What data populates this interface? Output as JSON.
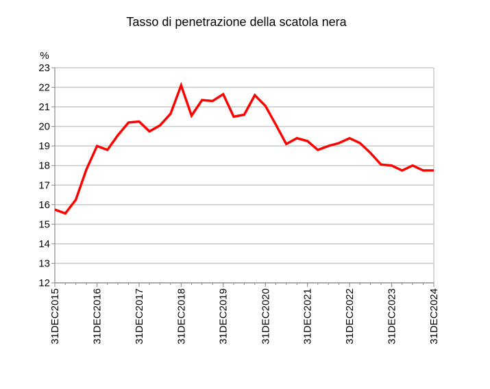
{
  "chart_data": {
    "type": "line",
    "title": "Tasso di penetrazione della scatola nera",
    "ylabel": "%",
    "xlabel": "",
    "ylim": [
      12,
      23
    ],
    "y_ticks": [
      "12",
      "13",
      "14",
      "15",
      "16",
      "17",
      "18",
      "19",
      "20",
      "21",
      "22",
      "23"
    ],
    "x_ticks": [
      "31DEC2015",
      "31DEC2016",
      "31DEC2017",
      "31DEC2018",
      "31DEC2019",
      "31DEC2020",
      "31DEC2021",
      "31DEC2022",
      "31DEC2023",
      "31DEC2024"
    ],
    "grid": true,
    "legend": "none",
    "line_color": "#ff0000",
    "grid_color": "#c8c8c8",
    "series": [
      {
        "x": [
          "2015-12-31",
          "2016-03-31",
          "2016-06-30",
          "2016-09-30",
          "2016-12-31",
          "2017-03-31",
          "2017-06-30",
          "2017-09-30",
          "2017-12-31",
          "2018-03-31",
          "2018-06-30",
          "2018-09-30",
          "2018-12-31",
          "2019-03-31",
          "2019-06-30",
          "2019-09-30",
          "2019-12-31",
          "2020-03-31",
          "2020-06-30",
          "2020-09-30",
          "2020-12-31",
          "2021-03-31",
          "2021-06-30",
          "2021-09-30",
          "2021-12-31",
          "2022-03-31",
          "2022-06-30",
          "2022-09-30",
          "2022-12-31",
          "2023-03-31",
          "2023-06-30",
          "2023-09-30",
          "2023-12-31",
          "2024-03-31",
          "2024-06-30",
          "2024-09-30",
          "2024-12-31"
        ],
        "values": [
          15.75,
          15.55,
          16.25,
          17.8,
          19.0,
          18.8,
          19.55,
          20.2,
          20.25,
          19.75,
          20.05,
          20.65,
          22.1,
          20.55,
          21.35,
          21.3,
          21.65,
          20.5,
          20.6,
          21.6,
          21.05,
          20.1,
          19.1,
          19.4,
          19.25,
          18.8,
          19.0,
          19.15,
          19.4,
          19.15,
          18.65,
          18.05,
          18.0,
          17.75,
          18.0,
          17.75,
          17.75
        ]
      }
    ]
  }
}
